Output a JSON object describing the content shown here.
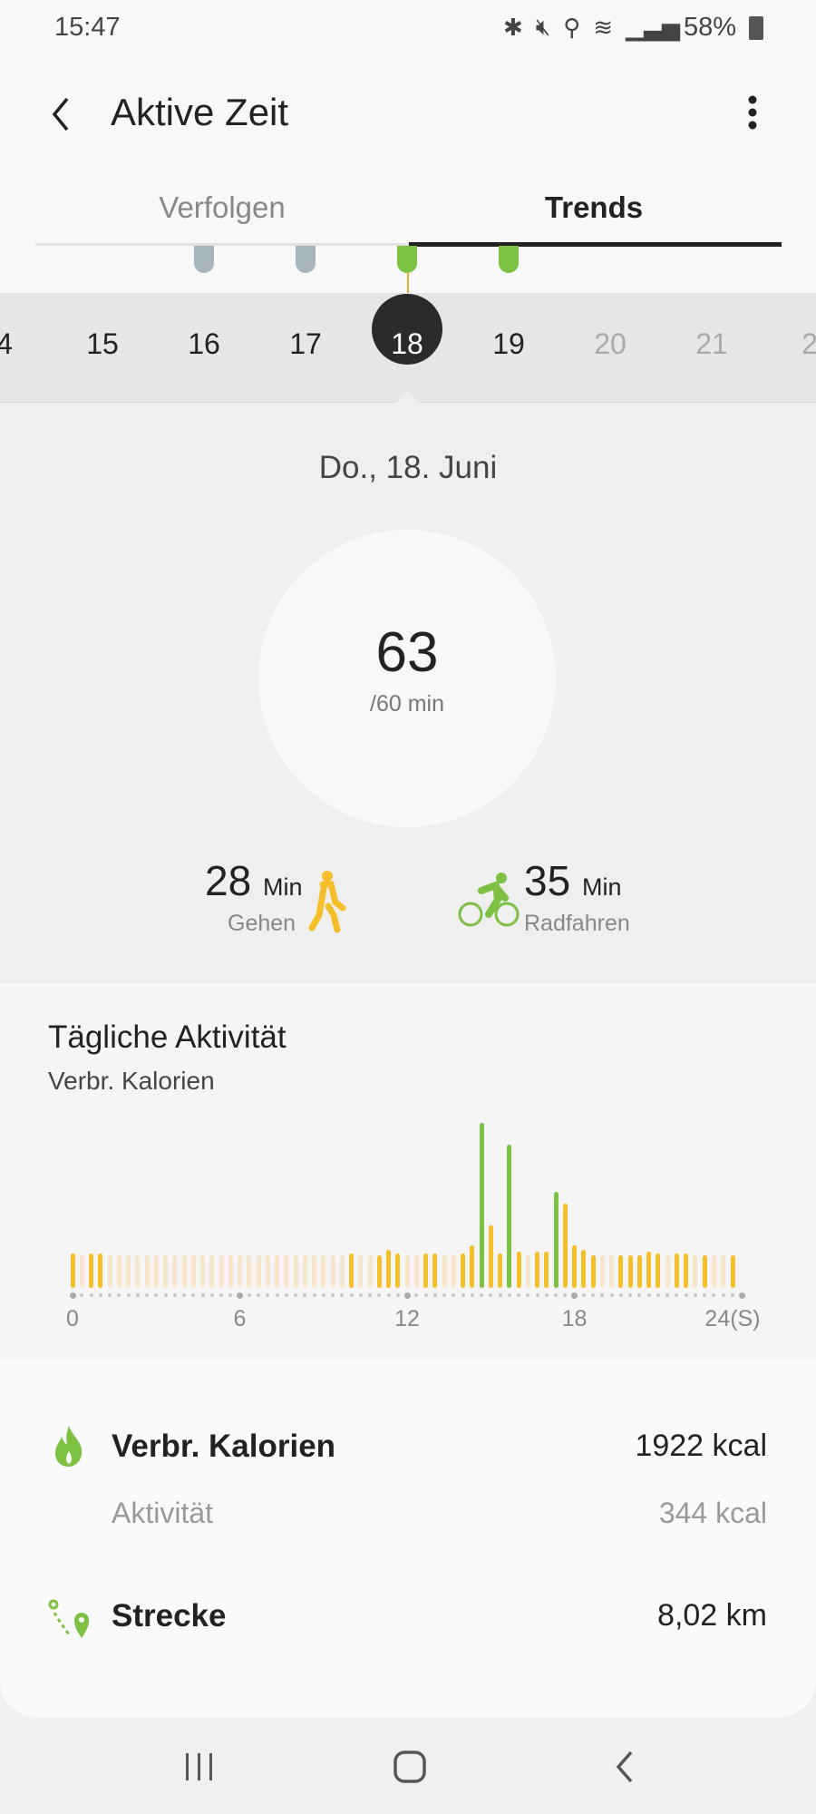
{
  "status_bar": {
    "time": "15:47",
    "battery": "58%",
    "icons": [
      "bluetooth-icon",
      "mute-icon",
      "location-icon",
      "wifi-icon",
      "signal-icon",
      "battery-icon"
    ]
  },
  "header": {
    "title": "Aktive Zeit",
    "back_icon": "chevron-left-icon",
    "menu_icon": "more-vertical-icon"
  },
  "tabs": [
    {
      "label": "Verfolgen",
      "active": false
    },
    {
      "label": "Trends",
      "active": true
    }
  ],
  "day_strip": {
    "days": [
      {
        "label": "4",
        "marker": null,
        "future": false
      },
      {
        "label": "15",
        "marker": null,
        "future": false
      },
      {
        "label": "16",
        "marker": "#a8b4bb",
        "future": false
      },
      {
        "label": "17",
        "marker": "#a8b4bb",
        "future": false
      },
      {
        "label": "18",
        "marker": "#7cc142",
        "future": false,
        "selected": true
      },
      {
        "label": "19",
        "marker": "#7cc142",
        "future": false
      },
      {
        "label": "20",
        "marker": null,
        "future": true
      },
      {
        "label": "21",
        "marker": null,
        "future": true
      },
      {
        "label": "2",
        "marker": null,
        "future": true
      }
    ]
  },
  "summary": {
    "date": "Do., 18. Juni",
    "value": "63",
    "goal": "/60 min",
    "walking": {
      "value": "28",
      "unit": "Min",
      "label": "Gehen",
      "color": "#f5bf2a"
    },
    "cycling": {
      "value": "35",
      "unit": "Min",
      "label": "Radfahren",
      "color": "#7cc142"
    }
  },
  "daily": {
    "title": "Tägliche Aktivität",
    "subtitle": "Verbr. Kalorien"
  },
  "chart_data": {
    "type": "bar",
    "xlabel": "",
    "ylabel": "",
    "x_ticks": [
      "0",
      "6",
      "12",
      "18",
      "24(S)"
    ],
    "xlim": [
      0,
      24
    ],
    "interval_minutes": 20,
    "colors": {
      "inactive": "#f8e5cc",
      "active": "#f5bf2a",
      "exercise": "#7cc142"
    },
    "values": [
      21,
      20,
      21,
      21,
      20,
      20,
      20,
      20,
      20,
      20,
      20,
      20,
      20,
      20,
      20,
      20,
      20,
      20,
      20,
      20,
      20,
      20,
      20,
      20,
      20,
      20,
      20,
      20,
      20,
      20,
      21,
      20,
      20,
      20,
      23,
      21,
      20,
      20,
      21,
      21,
      20,
      20,
      21,
      26,
      100,
      38,
      21,
      87,
      22,
      20,
      22,
      22,
      58,
      51,
      26,
      23,
      20,
      20,
      20,
      20,
      20,
      20,
      22,
      21,
      20,
      21,
      21,
      20,
      20,
      20,
      20,
      20
    ],
    "kinds": [
      "a",
      "i",
      "a",
      "a",
      "i",
      "i",
      "i",
      "i",
      "i",
      "i",
      "i",
      "i",
      "i",
      "i",
      "i",
      "i",
      "i",
      "i",
      "i",
      "i",
      "i",
      "i",
      "i",
      "i",
      "i",
      "i",
      "i",
      "i",
      "i",
      "i",
      "a",
      "i",
      "i",
      "a",
      "a",
      "a",
      "i",
      "i",
      "a",
      "a",
      "i",
      "i",
      "a",
      "a",
      "e",
      "a",
      "a",
      "e",
      "a",
      "i",
      "a",
      "a",
      "e",
      "a",
      "a",
      "a",
      "a",
      "i",
      "i",
      "a",
      "a",
      "a",
      "a",
      "a",
      "i",
      "a",
      "a",
      "i",
      "a",
      "i",
      "i",
      "a"
    ]
  },
  "stats": {
    "calories": {
      "label": "Verbr. Kalorien",
      "value": "1922 kcal"
    },
    "activity": {
      "label": "Aktivität",
      "value": "344 kcal"
    },
    "distance": {
      "label": "Strecke",
      "value": "8,02 km"
    }
  },
  "colors": {
    "accent": "#7cc142",
    "walk": "#f5bf2a",
    "selected_day": "#2b2b2b"
  }
}
